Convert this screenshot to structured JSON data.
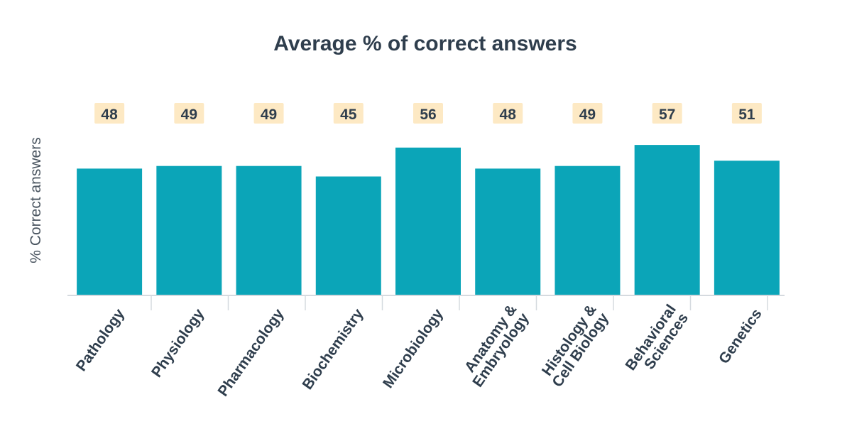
{
  "chart_data": {
    "type": "bar",
    "title": "Average % of correct answers",
    "ylabel": "% Correct answers",
    "xlabel": "",
    "categories": [
      [
        "Pathology"
      ],
      [
        "Physiology"
      ],
      [
        "Pharmacology"
      ],
      [
        "Biochemistry"
      ],
      [
        "Microbiology"
      ],
      [
        "Anatomy &",
        "Embryology"
      ],
      [
        "Histology &",
        "Cell Biology"
      ],
      [
        "Behavioral",
        "Sciences"
      ],
      [
        "Genetics"
      ]
    ],
    "values": [
      48,
      49,
      49,
      45,
      56,
      48,
      49,
      57,
      51
    ],
    "ylim": [
      0,
      100
    ],
    "grid": false,
    "legend": "none",
    "colors": {
      "bar": "#0ba5b8",
      "label_bg": "#fde9c4",
      "text": "#2f3e4d",
      "axis": "#d5dadf"
    }
  }
}
